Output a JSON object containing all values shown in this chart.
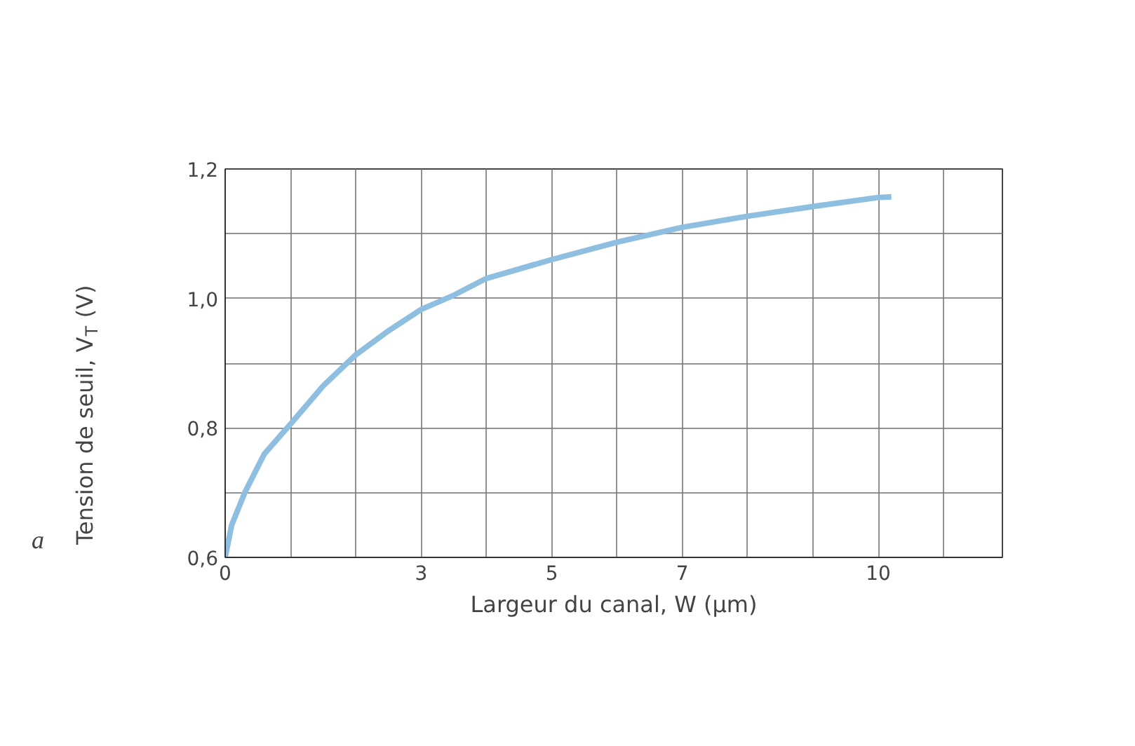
{
  "chart_data": {
    "type": "line",
    "xlabel": "Largeur du canal, W (µm)",
    "ylabel": "Tension de seuil, V$_{T}$ (V)",
    "x": [
      0,
      0.1,
      0.3,
      0.6,
      1,
      1.5,
      2,
      2.5,
      3,
      3.5,
      4,
      5,
      6,
      7,
      8,
      9,
      10,
      10.2
    ],
    "series": [
      {
        "color": "#8fbfe0",
        "values": [
          0.6,
          0.65,
          0.7,
          0.76,
          0.806,
          0.865,
          0.913,
          0.95,
          0.983,
          1.005,
          1.031,
          1.06,
          1.087,
          1.11,
          1.127,
          1.142,
          1.156,
          1.157
        ]
      }
    ],
    "xlim": [
      0,
      11.9
    ],
    "ylim": [
      0.6,
      1.2
    ],
    "xticks": [
      {
        "value": 0,
        "label": "0"
      },
      {
        "value": 1,
        "label": null
      },
      {
        "value": 2,
        "label": null
      },
      {
        "value": 3,
        "label": "3"
      },
      {
        "value": 4,
        "label": null
      },
      {
        "value": 5,
        "label": "5"
      },
      {
        "value": 6,
        "label": null
      },
      {
        "value": 7,
        "label": "7"
      },
      {
        "value": 8,
        "label": null
      },
      {
        "value": 9,
        "label": null
      },
      {
        "value": 10,
        "label": "10"
      },
      {
        "value": 11,
        "label": null
      }
    ],
    "yticks": [
      {
        "value": 0.6,
        "label": "0,6"
      },
      {
        "value": 0.7,
        "label": null
      },
      {
        "value": 0.8,
        "label": "0,8"
      },
      {
        "value": 0.9,
        "label": null
      },
      {
        "value": 1.0,
        "label": "1,0"
      },
      {
        "value": 1.1,
        "label": null
      },
      {
        "value": 1.2,
        "label": "1,2"
      }
    ],
    "grid": true,
    "marker": "none",
    "line_style": "solid",
    "annotations": [
      "a"
    ]
  }
}
